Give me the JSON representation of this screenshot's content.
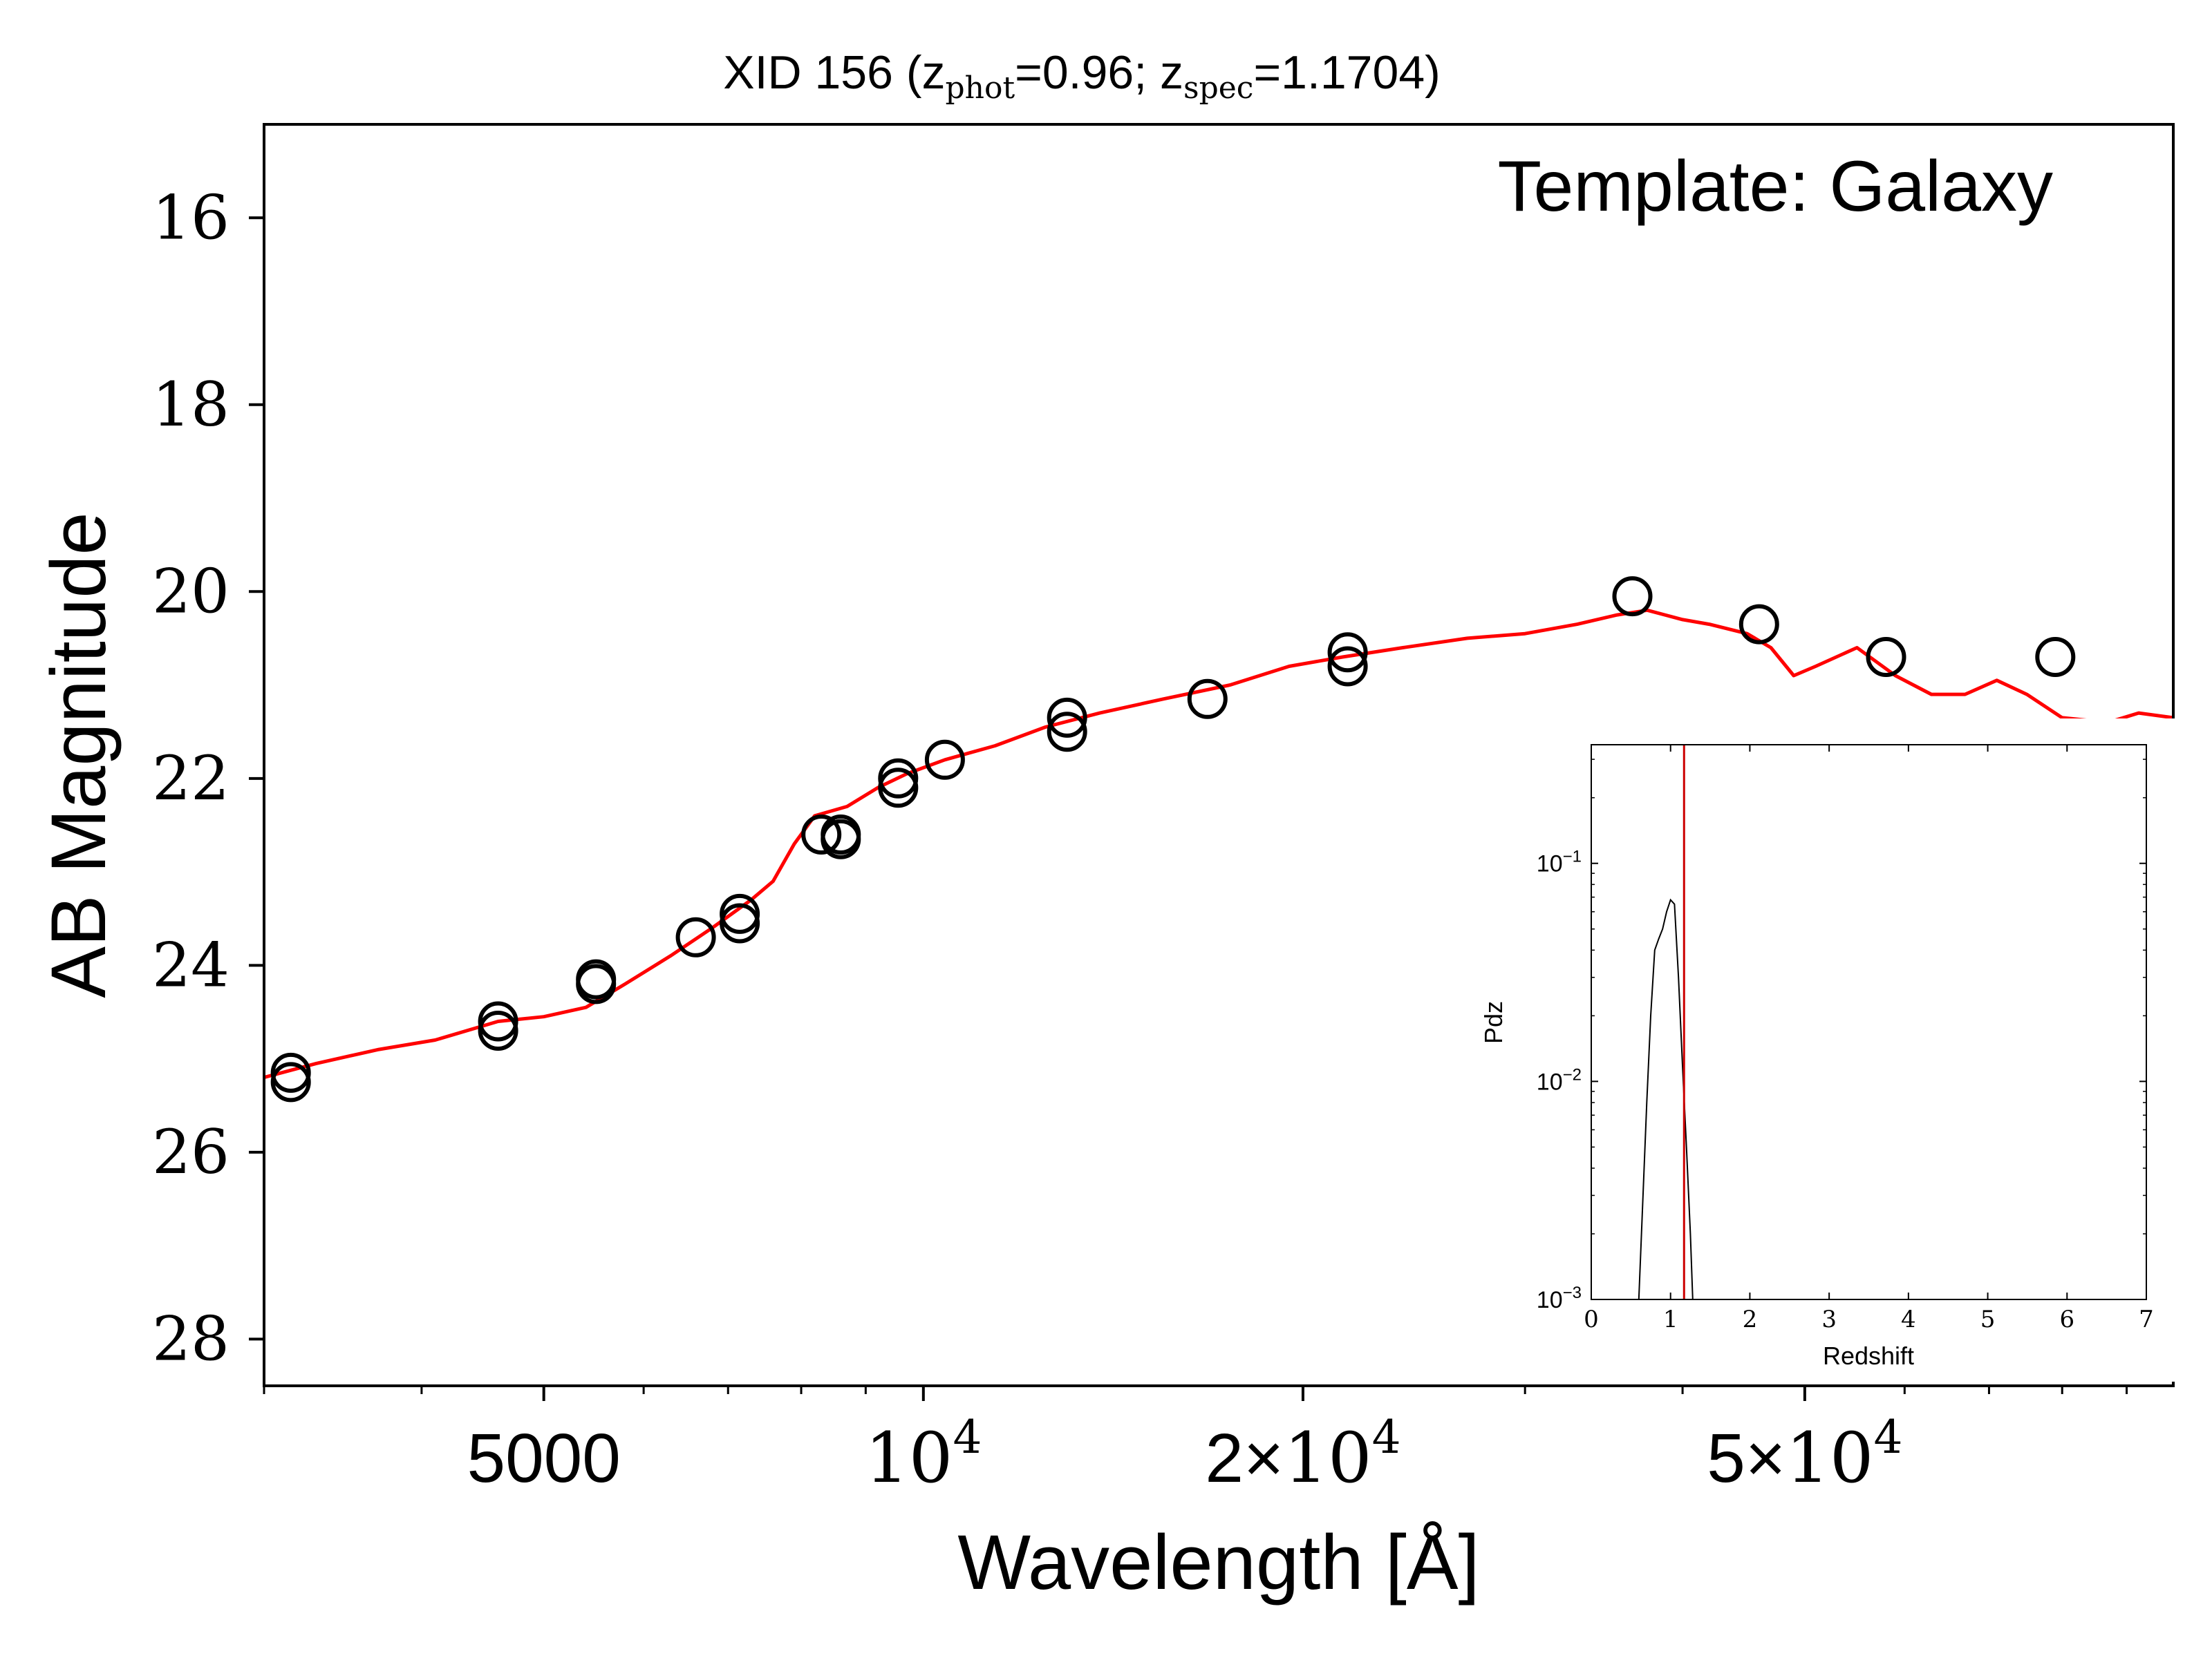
{
  "chart_data": [
    {
      "type": "scatter",
      "title_main": "XID 156 (z",
      "title_sub1": "phot",
      "title_mid": "=0.96; z",
      "title_sub2": "spec",
      "title_end": "=1.1704)",
      "annotation": "Template: Galaxy",
      "xlabel": "Wavelength [Å]",
      "ylabel": "AB Magnitude",
      "xscale": "log",
      "xlim": [
        3000,
        98000
      ],
      "ylim": [
        28.5,
        15
      ],
      "y_inverted": true,
      "xticks": [
        {
          "value": 5000,
          "label": "5000",
          "base": "",
          "exp": ""
        },
        {
          "value": 10000,
          "label": "",
          "base": "10",
          "exp": "4"
        },
        {
          "value": 20000,
          "label": "2×",
          "base": "10",
          "exp": "4"
        },
        {
          "value": 50000,
          "label": "5×",
          "base": "10",
          "exp": "4"
        }
      ],
      "yticks": [
        {
          "value": 16,
          "label": "16"
        },
        {
          "value": 18,
          "label": "18"
        },
        {
          "value": 20,
          "label": "20"
        },
        {
          "value": 22,
          "label": "22"
        },
        {
          "value": 24,
          "label": "24"
        },
        {
          "value": 26,
          "label": "26"
        },
        {
          "value": 28,
          "label": "28"
        }
      ],
      "series": [
        {
          "kind": "line",
          "color": "#ff0000",
          "points": [
            [
              3000,
              25.2
            ],
            [
              3300,
              25.05
            ],
            [
              3700,
              24.9
            ],
            [
              4100,
              24.8
            ],
            [
              4600,
              24.6
            ],
            [
              5000,
              24.55
            ],
            [
              5400,
              24.45
            ],
            [
              5800,
              24.2
            ],
            [
              6300,
              23.9
            ],
            [
              6800,
              23.6
            ],
            [
              7300,
              23.3
            ],
            [
              7600,
              23.1
            ],
            [
              7900,
              22.7
            ],
            [
              8200,
              22.4
            ],
            [
              8700,
              22.3
            ],
            [
              9200,
              22.1
            ],
            [
              9700,
              21.95
            ],
            [
              10400,
              21.8
            ],
            [
              11400,
              21.65
            ],
            [
              12500,
              21.45
            ],
            [
              13800,
              21.3
            ],
            [
              15500,
              21.15
            ],
            [
              17500,
              21.0
            ],
            [
              19500,
              20.8
            ],
            [
              21500,
              20.7
            ],
            [
              24000,
              20.6
            ],
            [
              27000,
              20.5
            ],
            [
              30000,
              20.45
            ],
            [
              33000,
              20.35
            ],
            [
              35500,
              20.25
            ],
            [
              37500,
              20.2
            ],
            [
              40000,
              20.3
            ],
            [
              42000,
              20.35
            ],
            [
              45000,
              20.45
            ],
            [
              47000,
              20.6
            ],
            [
              49000,
              20.9
            ],
            [
              51000,
              20.8
            ],
            [
              55000,
              20.6
            ],
            [
              59000,
              20.9
            ],
            [
              63000,
              21.1
            ],
            [
              67000,
              21.1
            ],
            [
              71000,
              20.95
            ],
            [
              75000,
              21.1
            ],
            [
              80000,
              21.35
            ],
            [
              87000,
              21.4
            ],
            [
              92000,
              21.3
            ],
            [
              98000,
              21.35
            ]
          ]
        },
        {
          "kind": "scatter",
          "color": "#000000",
          "points": [
            [
              3150,
              25.15
            ],
            [
              3150,
              25.25
            ],
            [
              4600,
              24.6
            ],
            [
              4600,
              24.7
            ],
            [
              5500,
              24.15
            ],
            [
              5500,
              24.2
            ],
            [
              6600,
              23.7
            ],
            [
              7150,
              23.45
            ],
            [
              7150,
              23.55
            ],
            [
              8300,
              22.6
            ],
            [
              8600,
              22.6
            ],
            [
              8600,
              22.65
            ],
            [
              9550,
              22.0
            ],
            [
              9550,
              22.1
            ],
            [
              10400,
              21.8
            ],
            [
              13000,
              21.35
            ],
            [
              13000,
              21.5
            ],
            [
              16800,
              21.15
            ],
            [
              21700,
              20.65
            ],
            [
              21700,
              20.8
            ],
            [
              36500,
              20.05
            ],
            [
              46000,
              20.35
            ],
            [
              58000,
              20.7
            ],
            [
              79000,
              20.7
            ]
          ]
        }
      ]
    },
    {
      "type": "line",
      "xlabel": "Redshift",
      "ylabel": "Pdz",
      "xscale": "linear",
      "yscale": "log",
      "xlim": [
        0,
        7
      ],
      "ylim": [
        0.001,
        0.35
      ],
      "xticks": [
        "0",
        "1",
        "2",
        "3",
        "4",
        "5",
        "6",
        "7"
      ],
      "yticks": [
        {
          "value": 0.1,
          "base": "10",
          "exp": "−1"
        },
        {
          "value": 0.01,
          "base": "10",
          "exp": "−2"
        },
        {
          "value": 0.001,
          "base": "10",
          "exp": "−3"
        }
      ],
      "reference_line": {
        "x": 1.1704,
        "color": "#cc0000"
      },
      "series": [
        {
          "color": "#000000",
          "points": [
            [
              0.6,
              0.001
            ],
            [
              0.7,
              0.008
            ],
            [
              0.75,
              0.02
            ],
            [
              0.8,
              0.04
            ],
            [
              0.85,
              0.045
            ],
            [
              0.9,
              0.05
            ],
            [
              0.95,
              0.06
            ],
            [
              1.0,
              0.068
            ],
            [
              1.05,
              0.065
            ],
            [
              1.1,
              0.03
            ],
            [
              1.15,
              0.012
            ],
            [
              1.2,
              0.005
            ],
            [
              1.25,
              0.002
            ],
            [
              1.28,
              0.001
            ]
          ]
        }
      ]
    }
  ]
}
